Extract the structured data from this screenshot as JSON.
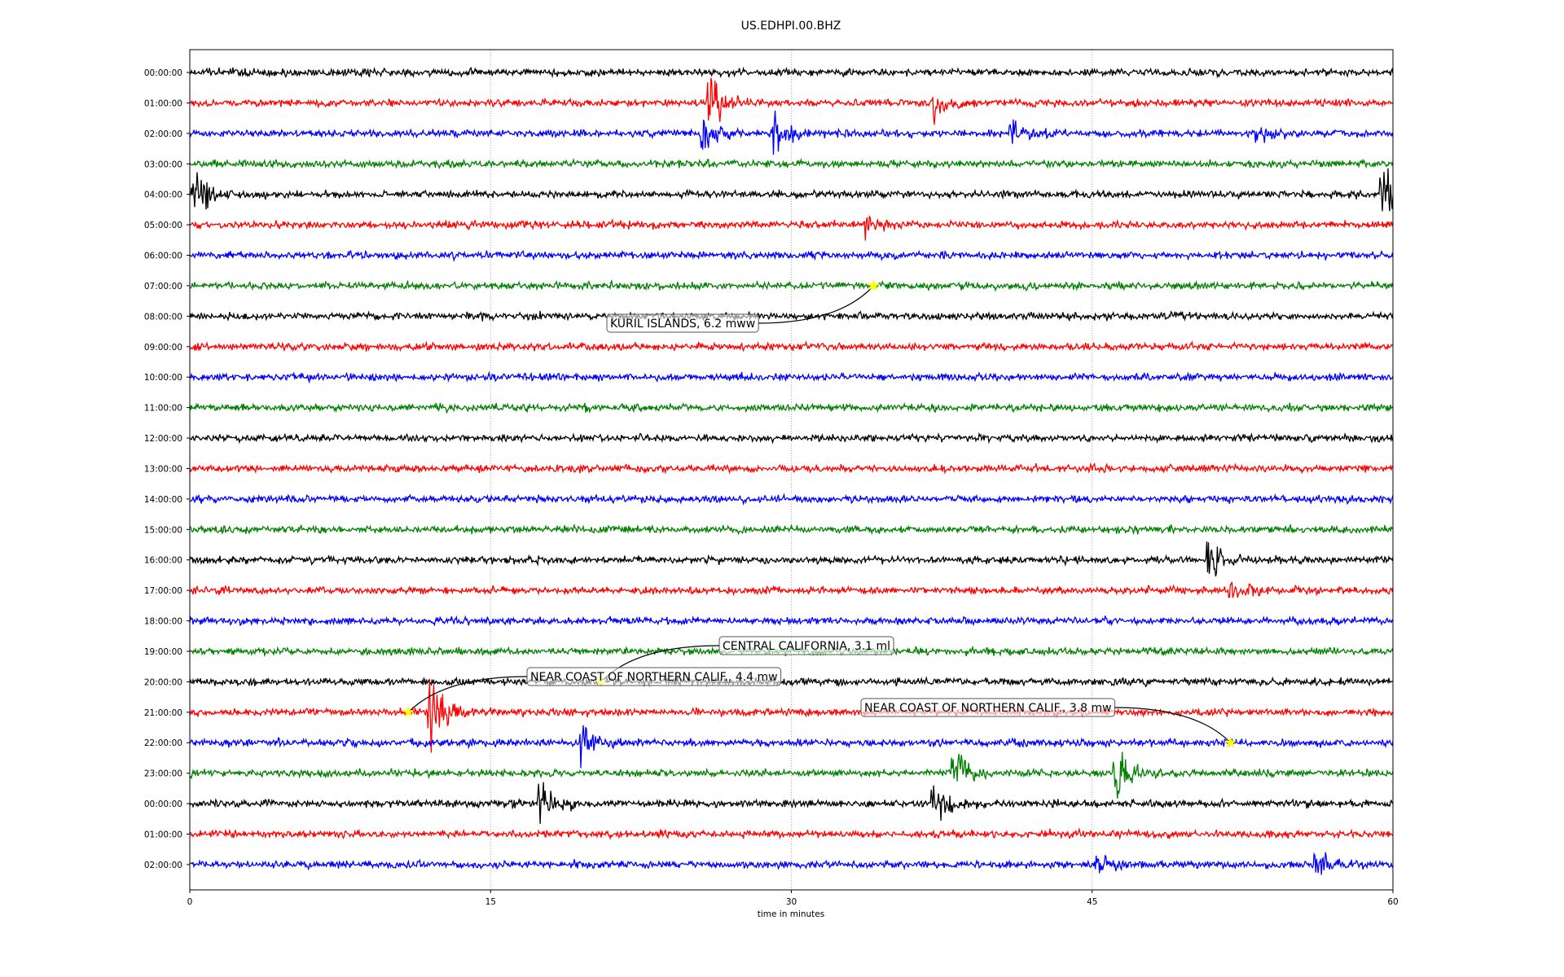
{
  "chart_data": {
    "type": "line",
    "title": "US.EDHPI.00.BHZ",
    "xlabel": "time in minutes",
    "ylabel": "",
    "xlim": [
      0,
      60
    ],
    "x_ticks": [
      "0",
      "15",
      "30",
      "45",
      "60"
    ],
    "x_tick_values": [
      0,
      15,
      30,
      45,
      60
    ],
    "grid": "vertical dotted lines at x ticks",
    "row_labels": [
      "00:00:00",
      "01:00:00",
      "02:00:00",
      "03:00:00",
      "04:00:00",
      "05:00:00",
      "06:00:00",
      "07:00:00",
      "08:00:00",
      "09:00:00",
      "10:00:00",
      "11:00:00",
      "12:00:00",
      "13:00:00",
      "14:00:00",
      "15:00:00",
      "16:00:00",
      "17:00:00",
      "18:00:00",
      "19:00:00",
      "20:00:00",
      "21:00:00",
      "22:00:00",
      "23:00:00",
      "00:00:00",
      "01:00:00",
      "02:00:00"
    ],
    "trace_colors": [
      "#000000",
      "#ff0000",
      "#0000ff",
      "#008000"
    ],
    "bursts": [
      {
        "row": 1,
        "minute": 25.9,
        "amplitude": 5
      },
      {
        "row": 1,
        "minute": 37.2,
        "amplitude": 2
      },
      {
        "row": 2,
        "minute": 25.6,
        "amplitude": 3
      },
      {
        "row": 2,
        "minute": 29.2,
        "amplitude": 3
      },
      {
        "row": 2,
        "minute": 41.0,
        "amplitude": 2
      },
      {
        "row": 2,
        "minute": 53.1,
        "amplitude": 2
      },
      {
        "row": 4,
        "minute": 0.2,
        "amplitude": 4
      },
      {
        "row": 4,
        "minute": 59.5,
        "amplitude": 5
      },
      {
        "row": 5,
        "minute": 33.8,
        "amplitude": 2
      },
      {
        "row": 16,
        "minute": 50.8,
        "amplitude": 4
      },
      {
        "row": 17,
        "minute": 51.9,
        "amplitude": 2
      },
      {
        "row": 21,
        "minute": 12.0,
        "amplitude": 5
      },
      {
        "row": 22,
        "minute": 19.6,
        "amplitude": 3
      },
      {
        "row": 23,
        "minute": 38.1,
        "amplitude": 4
      },
      {
        "row": 23,
        "minute": 46.2,
        "amplitude": 4
      },
      {
        "row": 24,
        "minute": 17.5,
        "amplitude": 4
      },
      {
        "row": 24,
        "minute": 37.1,
        "amplitude": 4
      },
      {
        "row": 26,
        "minute": 45.3,
        "amplitude": 2
      },
      {
        "row": 26,
        "minute": 56.2,
        "amplitude": 2
      }
    ],
    "annotations": [
      {
        "text": "KURIL ISLANDS, 6.2 mww",
        "row": 7,
        "minute": 34.1,
        "box_color": "#ffffff"
      },
      {
        "text": "CENTRAL CALIFORNIA, 3.1 ml",
        "row": 20,
        "minute": 20.5,
        "box_color": "#ffffff"
      },
      {
        "text": "NEAR COAST OF NORTHERN CALIF., 4.4 mw",
        "row": 21,
        "minute": 10.9,
        "box_color": "#ffffff"
      },
      {
        "text": "NEAR COAST OF NORTHERN CALIF., 3.8 mw",
        "row": 22,
        "minute": 51.9,
        "box_color": "#ffffff"
      }
    ],
    "marker_color": "#ffff00"
  }
}
